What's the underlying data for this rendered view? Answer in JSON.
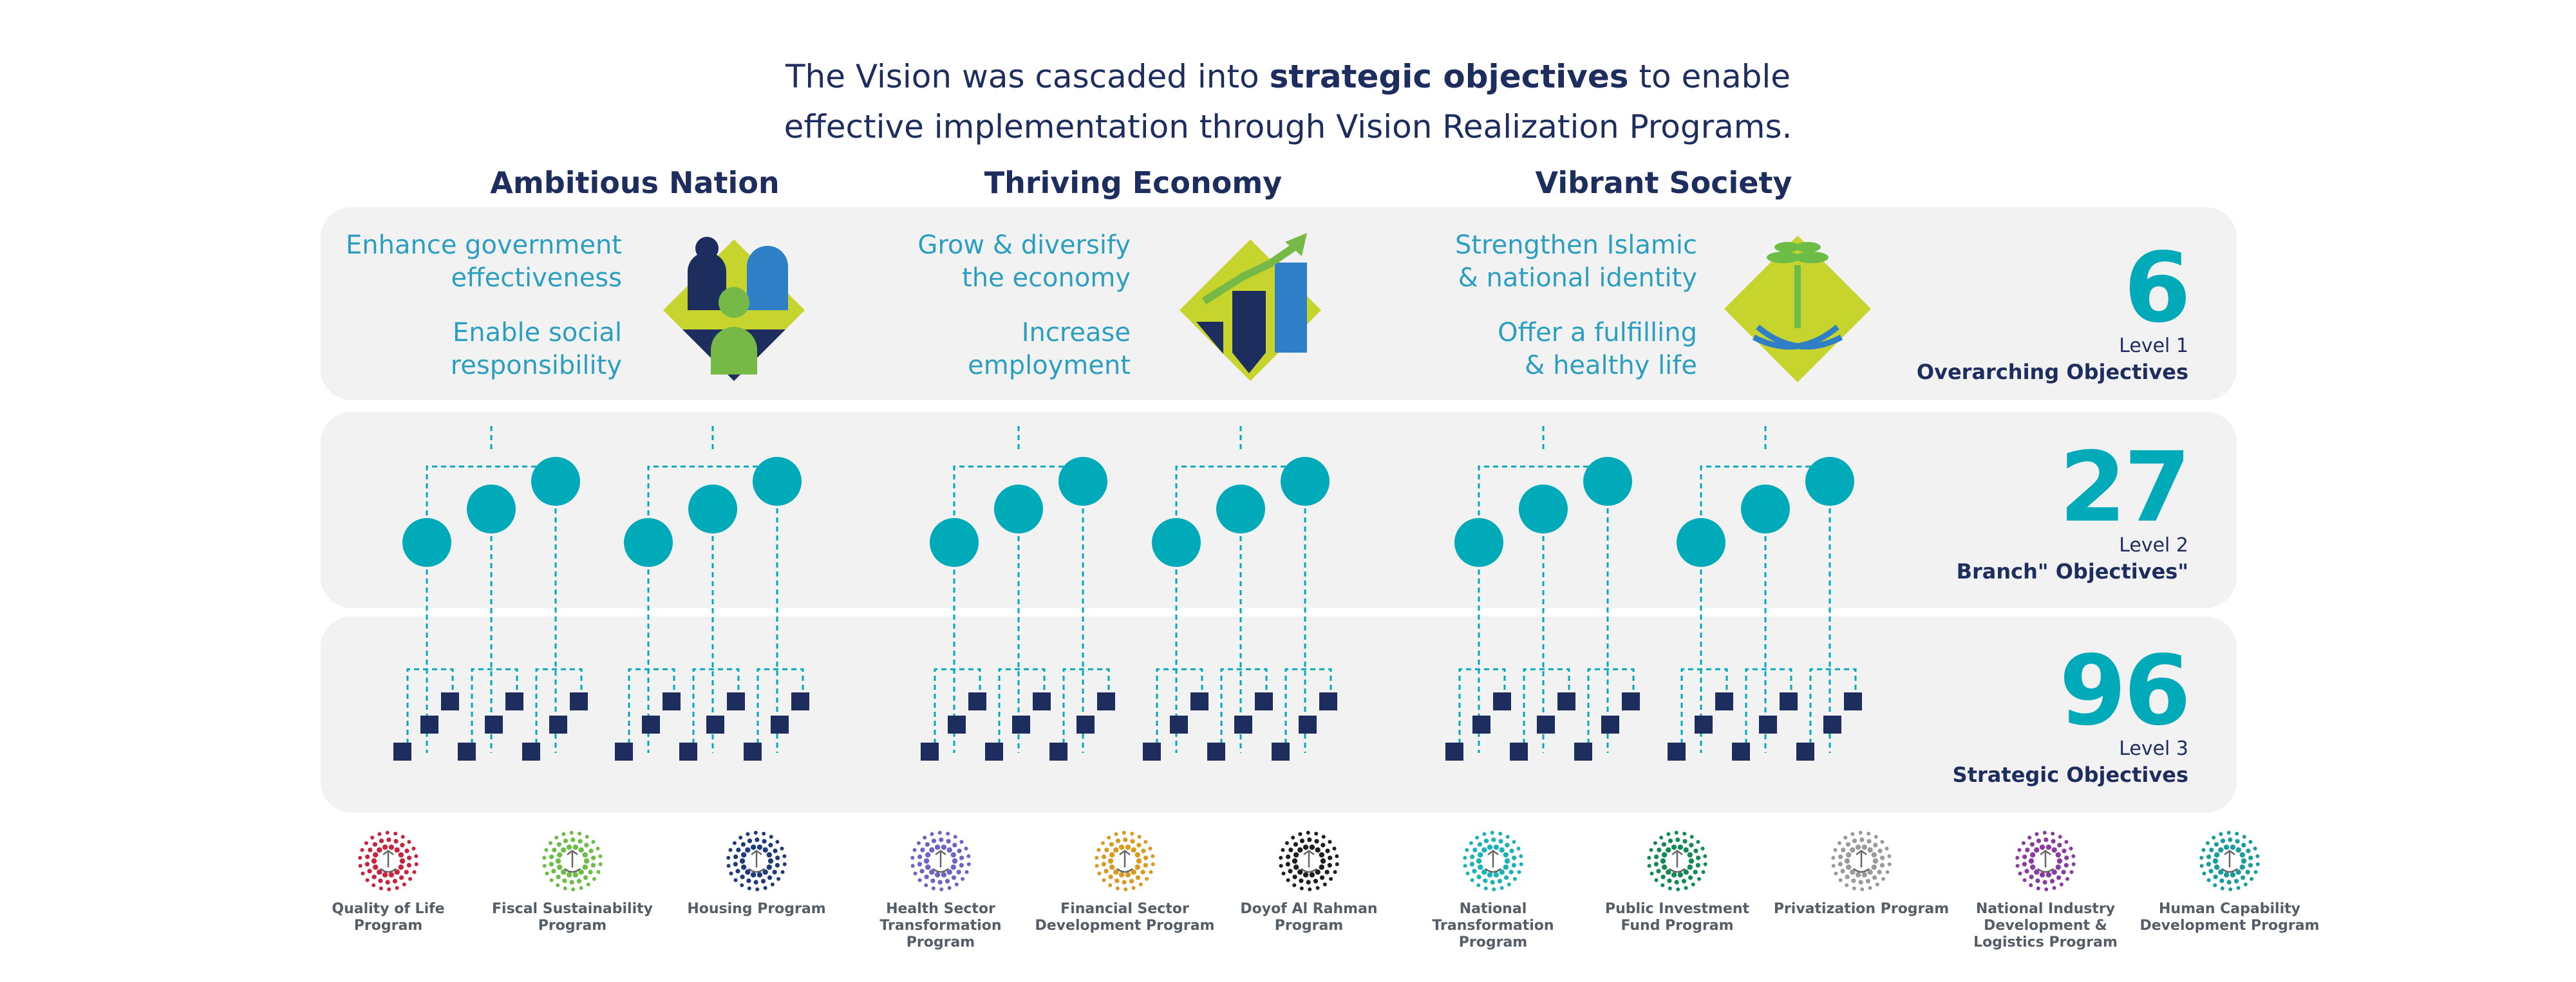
{
  "intro": {
    "line1_before": "The Vision was cascaded into ",
    "line1_bold": "strategic objectives",
    "line1_after": " to enable",
    "line2": "effective implementation through Vision Realization Programs."
  },
  "columns": [
    {
      "title": "Ambitious Nation",
      "objectives": [
        {
          "line1": "Enhance government",
          "line2": "effectiveness"
        },
        {
          "line1": "Enable social",
          "line2": "responsibility"
        }
      ],
      "icon": "people-icon"
    },
    {
      "title": "Thriving Economy",
      "objectives": [
        {
          "line1": "Grow & diversify",
          "line2": "the economy"
        },
        {
          "line1": "Increase",
          "line2": "employment"
        }
      ],
      "icon": "growth-chart-icon"
    },
    {
      "title": "Vibrant Society",
      "objectives": [
        {
          "line1": "Strengthen Islamic",
          "line2": "& national identity"
        },
        {
          "line1": "Offer a fulfilling",
          "line2": "& healthy life"
        }
      ],
      "icon": "palm-swords-emblem-icon"
    }
  ],
  "levels": [
    {
      "count": "6",
      "level": "Level 1",
      "name": "Overarching Objectives"
    },
    {
      "count": "27",
      "level": "Level 2",
      "name": "Branch\" Objectives\""
    },
    {
      "count": "96",
      "level": "Level 3",
      "name": "Strategic Objectives"
    }
  ],
  "colors": {
    "navy": "#1c2d5e",
    "teal": "#00aab8",
    "blue_text": "#2c9fc0",
    "band": "#f2f2f2"
  },
  "programs": [
    {
      "line1": "Quality of Life",
      "line2": "Program",
      "line3": "",
      "color": "#c8233f"
    },
    {
      "line1": "Fiscal Sustainability",
      "line2": "Program",
      "line3": "",
      "color": "#6cbd45"
    },
    {
      "line1": "Housing Program",
      "line2": "",
      "line3": "",
      "color": "#1f3a78"
    },
    {
      "line1": "Health Sector",
      "line2": "Transformation",
      "line3": "Program",
      "color": "#6c63c9"
    },
    {
      "line1": "Financial Sector",
      "line2": "Development Program",
      "line3": "",
      "color": "#d89a1f"
    },
    {
      "line1": "Doyof Al Rahman",
      "line2": "Program",
      "line3": "",
      "color": "#1e1e1e"
    },
    {
      "line1": "National Transformation",
      "line2": "Program",
      "line3": "",
      "color": "#19b3b8"
    },
    {
      "line1": "Public Investment",
      "line2": "Fund Program",
      "line3": "",
      "color": "#138a52"
    },
    {
      "line1": "Privatization Program",
      "line2": "",
      "line3": "",
      "color": "#9a9a9a"
    },
    {
      "line1": "National Industry",
      "line2": "Development &",
      "line3": "Logistics Program",
      "color": "#8a3aa0"
    },
    {
      "line1": "Human Capability",
      "line2": "Development Program",
      "line3": "",
      "color": "#1a9c9c"
    }
  ]
}
